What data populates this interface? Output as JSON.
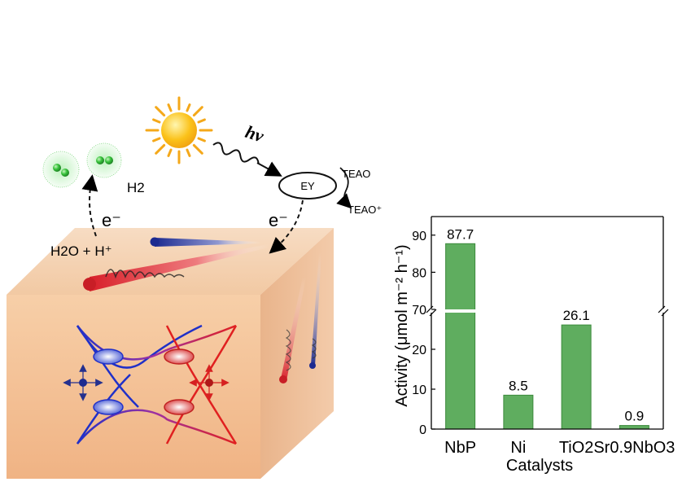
{
  "scheme": {
    "hv": "hν",
    "h2": "H2",
    "e_left": "e⁻",
    "e_right": "e⁻",
    "water": "H2O + H⁺",
    "ey": "EY",
    "teao": "TEAO",
    "teao_plus": "TEAO⁺"
  },
  "colors": {
    "bar": "#5fad5f",
    "crystal_front": "#f5c9a2",
    "cone_red": "#e0343a",
    "cone_blue": "#2836a8",
    "sun": "#fbc21a"
  },
  "chart_data": {
    "type": "bar",
    "categories": [
      "NbP",
      "Ni",
      "TiO2",
      "Sr0.9NbO3"
    ],
    "values": [
      87.7,
      8.5,
      26.1,
      0.9
    ],
    "value_labels": [
      "87.7",
      "8.5",
      "26.1",
      "0.9"
    ],
    "xlabel": "Catalysts",
    "ylabel": "Activity (μmol m⁻² h⁻¹)",
    "axis_break": [
      30,
      70
    ],
    "ylim": [
      0,
      95
    ],
    "lower_ticks": [
      "0",
      "10",
      "20"
    ],
    "upper_ticks": [
      "70",
      "80",
      "90"
    ]
  }
}
